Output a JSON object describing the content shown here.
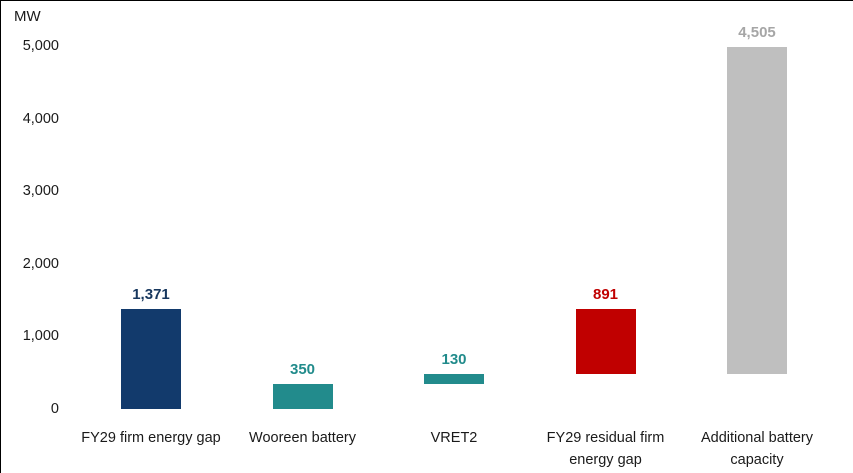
{
  "chart_data": {
    "type": "bar",
    "subtype": "waterfall",
    "title": "",
    "unit_label": "MW",
    "xlabel": "",
    "ylabel": "MW",
    "ylim": [
      0,
      5000
    ],
    "grid": false,
    "legend": false,
    "yticks": [
      "0",
      "1,000",
      "2,000",
      "3,000",
      "4,000",
      "5,000"
    ],
    "ytick_values": [
      0,
      1000,
      2000,
      3000,
      4000,
      5000
    ],
    "categories": [
      "FY29 firm energy gap",
      "Wooreen battery",
      "VRET2",
      "FY29 residual firm energy gap",
      "Additional battery capacity"
    ],
    "bars": [
      {
        "category": "FY29 firm energy gap",
        "label": "1,371",
        "value": 1371,
        "base": 0,
        "color": "#123a6c",
        "label_color": "#17375e"
      },
      {
        "category": "Wooreen battery",
        "label": "350",
        "value": 350,
        "base": 0,
        "color": "#228b8c",
        "label_color": "#218b8b"
      },
      {
        "category": "VRET2",
        "label": "130",
        "value": 130,
        "base": 350,
        "color": "#228b8c",
        "label_color": "#218b8b"
      },
      {
        "category": "FY29 residual firm energy gap",
        "label": "891",
        "value": 891,
        "base": 480,
        "color": "#c00000",
        "label_color": "#c00000"
      },
      {
        "category": "Additional battery capacity",
        "label": "4,505",
        "value": 4505,
        "base": 480,
        "color": "#bfbfbf",
        "label_color": "#a6a6a6"
      }
    ]
  }
}
